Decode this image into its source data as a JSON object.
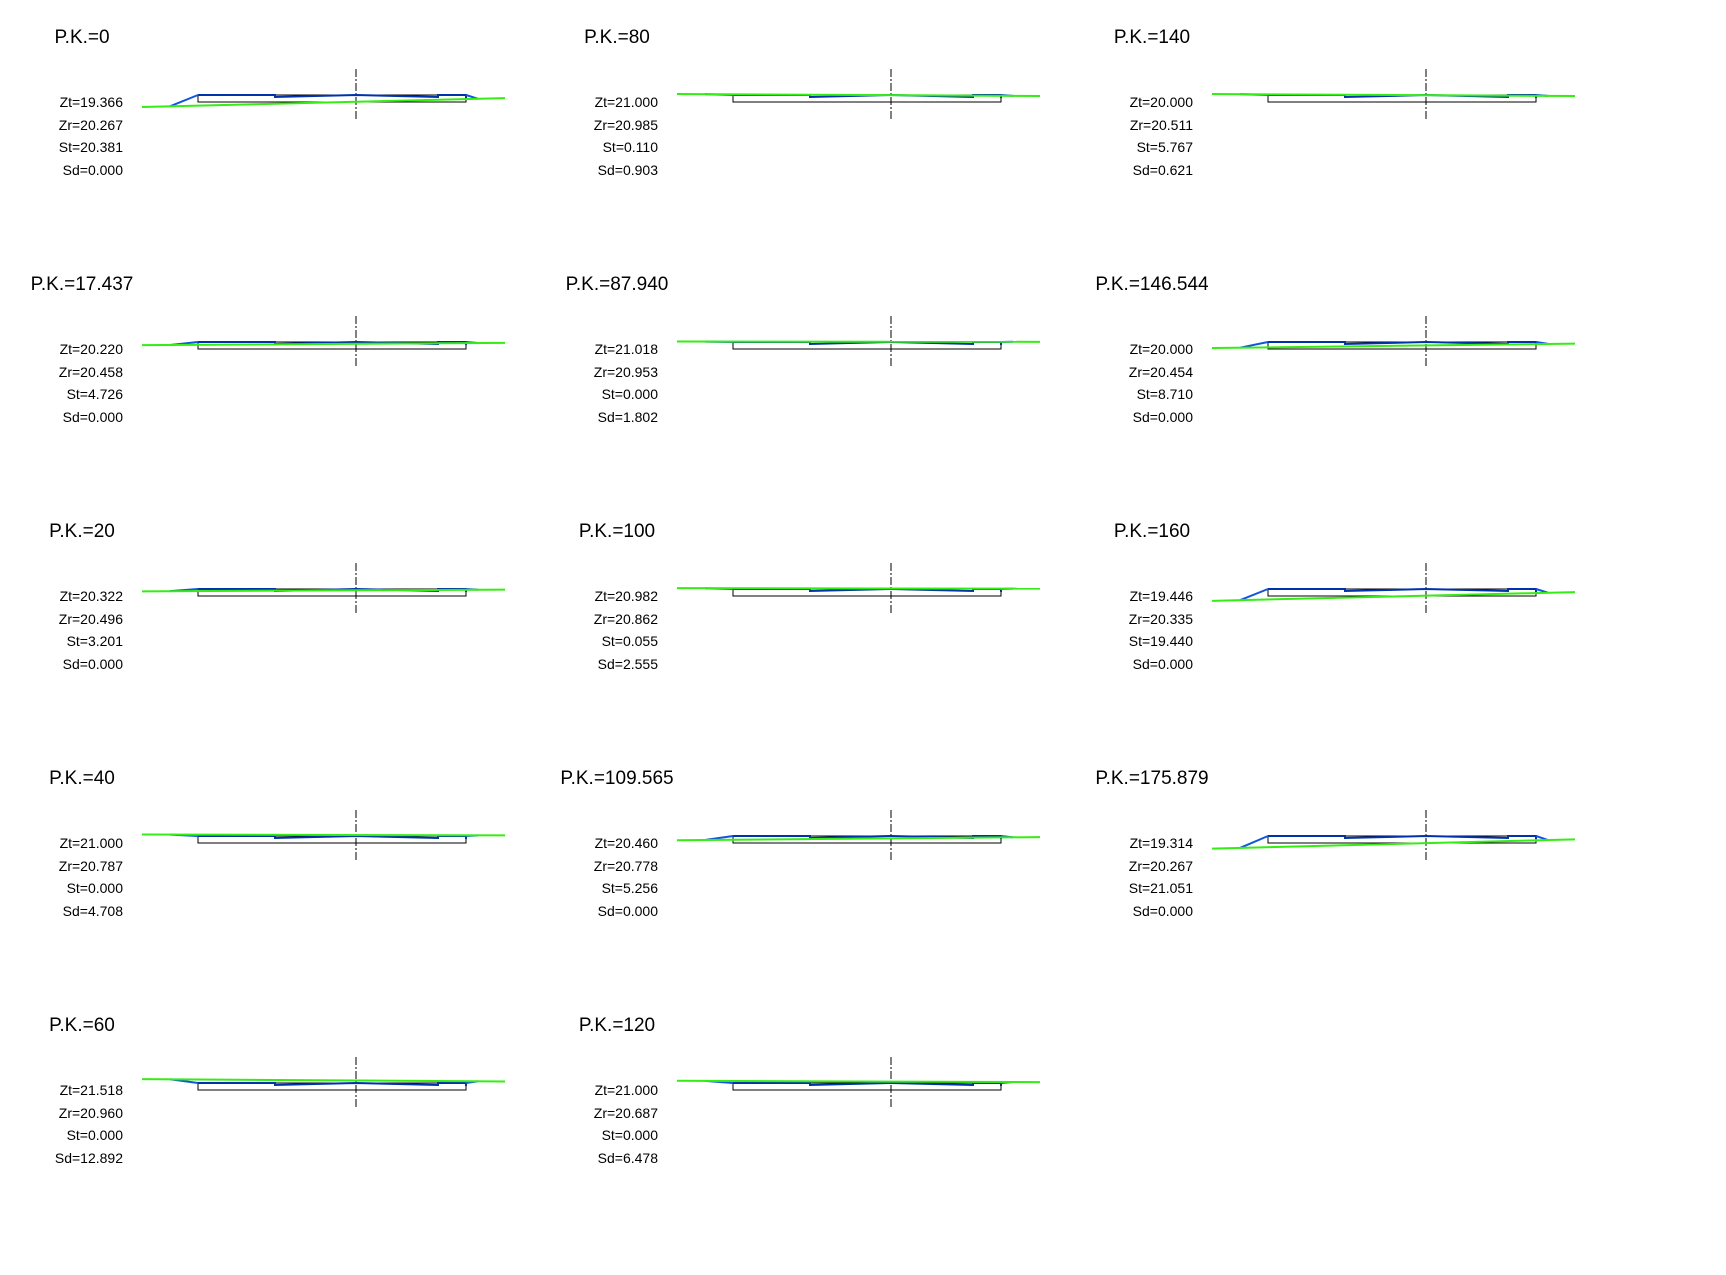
{
  "colors": {
    "terrain": "#33ee11",
    "design": "#0033aa",
    "slope": "#1155dd",
    "box": "#000000",
    "axis": "#000000"
  },
  "sections": [
    {
      "pk": "P.K.=0",
      "zt": "Zt=19.366",
      "zr": "Zr=20.267",
      "st": "St=20.381",
      "sd": "Sd=0.000",
      "mode": "fill"
    },
    {
      "pk": "P.K.=17.437",
      "zt": "Zt=20.220",
      "zr": "Zr=20.458",
      "st": "St=4.726",
      "sd": "Sd=0.000",
      "mode": "fill"
    },
    {
      "pk": "P.K.=20",
      "zt": "Zt=20.322",
      "zr": "Zr=20.496",
      "st": "St=3.201",
      "sd": "Sd=0.000",
      "mode": "fill"
    },
    {
      "pk": "P.K.=40",
      "zt": "Zt=21.000",
      "zr": "Zr=20.787",
      "st": "St=0.000",
      "sd": "Sd=4.708",
      "mode": "cut"
    },
    {
      "pk": "P.K.=60",
      "zt": "Zt=21.518",
      "zr": "Zr=20.960",
      "st": "St=0.000",
      "sd": "Sd=12.892",
      "mode": "cut"
    },
    {
      "pk": "P.K.=80",
      "zt": "Zt=21.000",
      "zr": "Zr=20.985",
      "st": "St=0.110",
      "sd": "Sd=0.903",
      "mode": "mixed"
    },
    {
      "pk": "P.K.=87.940",
      "zt": "Zt=21.018",
      "zr": "Zr=20.953",
      "st": "St=0.000",
      "sd": "Sd=1.802",
      "mode": "cut"
    },
    {
      "pk": "P.K.=100",
      "zt": "Zt=20.982",
      "zr": "Zr=20.862",
      "st": "St=0.055",
      "sd": "Sd=2.555",
      "mode": "cut"
    },
    {
      "pk": "P.K.=109.565",
      "zt": "Zt=20.460",
      "zr": "Zr=20.778",
      "st": "St=5.256",
      "sd": "Sd=0.000",
      "mode": "fill"
    },
    {
      "pk": "P.K.=120",
      "zt": "Zt=21.000",
      "zr": "Zr=20.687",
      "st": "St=0.000",
      "sd": "Sd=6.478",
      "mode": "cut"
    },
    {
      "pk": "P.K.=140",
      "zt": "Zt=20.000",
      "zr": "Zr=20.511",
      "st": "St=5.767",
      "sd": "Sd=0.621",
      "mode": "mixed"
    },
    {
      "pk": "P.K.=146.544",
      "zt": "Zt=20.000",
      "zr": "Zr=20.454",
      "st": "St=8.710",
      "sd": "Sd=0.000",
      "mode": "fill"
    },
    {
      "pk": "P.K.=160",
      "zt": "Zt=19.446",
      "zr": "Zr=20.335",
      "st": "St=19.440",
      "sd": "Sd=0.000",
      "mode": "fill"
    },
    {
      "pk": "P.K.=175.879",
      "zt": "Zt=19.314",
      "zr": "Zr=20.267",
      "st": "St=21.051",
      "sd": "Sd=0.000",
      "mode": "fill"
    }
  ]
}
